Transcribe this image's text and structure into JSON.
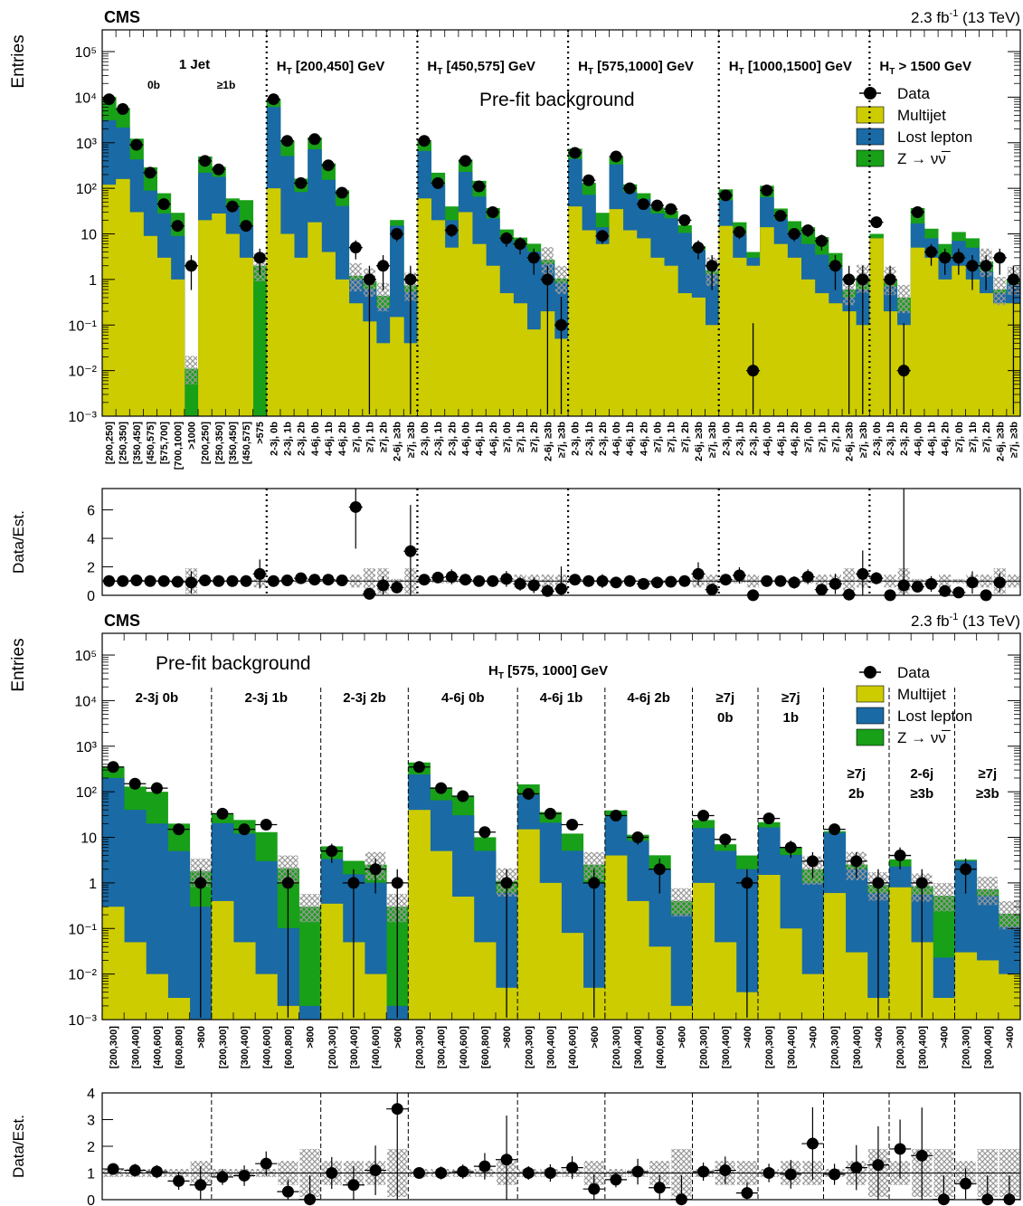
{
  "colors": {
    "multijet": "#cccc00",
    "lost_lepton": "#1a6aa5",
    "znunu": "#18a018",
    "data": "#000000",
    "unc": "#999999"
  },
  "chart_data": [
    {
      "type": "bar",
      "stacked": true,
      "log_y": true,
      "ylim": [
        0.001,
        300000
      ],
      "ylabel": "Entries",
      "experiment": "CMS",
      "lumi": "2.3 fb",
      "lumi_sup": "-1",
      "energy": "(13 TeV)",
      "annotation": "Pre-fit background",
      "legend_position": "top-right",
      "legend": [
        "Data",
        "Multijet",
        "Lost lepton",
        "Z → νν̅"
      ],
      "regions": [
        {
          "label": "1 Jet",
          "sub": [
            "0b",
            "≥1b"
          ]
        },
        {
          "label": "H",
          "sub_t": "T",
          "range": " [200,450] GeV"
        },
        {
          "label": "H",
          "sub_t": "T",
          "range": " [450,575] GeV"
        },
        {
          "label": "H",
          "sub_t": "T",
          "range": " [575,1000] GeV"
        },
        {
          "label": "H",
          "sub_t": "T",
          "range": " [1000,1500] GeV"
        },
        {
          "label": "H",
          "sub_t": "T",
          "range": " > 1500 GeV"
        }
      ],
      "categories": [
        "[200,250]",
        "[250,350]",
        "[350,450]",
        "[450,575]",
        "[575,700]",
        "[700,1000]",
        ">1000",
        "[200,250]",
        "[250,350]",
        "[350,450]",
        "[450,575]",
        ">575",
        "2-3j, 0b",
        "2-3j, 1b",
        "2-3j, 2b",
        "4-6j, 0b",
        "4-6j, 1b",
        "4-6j, 2b",
        "≥7j, 0b",
        "≥7j, 1b",
        "≥7j, 2b",
        "2-6j, ≥3b",
        "≥7j, ≥3b",
        "2-3j, 0b",
        "2-3j, 1b",
        "2-3j, 2b",
        "4-6j, 0b",
        "4-6j, 1b",
        "4-6j, 2b",
        "≥7j, 0b",
        "≥7j, 1b",
        "≥7j, 2b",
        "2-6j, ≥3b",
        "≥7j, ≥3b",
        "2-3j, 0b",
        "2-3j, 1b",
        "2-3j, 2b",
        "4-6j, 0b",
        "4-6j, 1b",
        "4-6j, 2b",
        "≥7j, 0b",
        "≥7j, 1b",
        "≥7j, 2b",
        "2-6j, ≥3b",
        "≥7j, ≥3b",
        "2-3j, 0b",
        "2-3j, 1b",
        "2-3j, 2b",
        "4-6j, 0b",
        "4-6j, 1b",
        "4-6j, 2b",
        "≥7j, 0b",
        "≥7j, 1b",
        "≥7j, 2b",
        "2-6j, ≥3b",
        "≥7j, ≥3b",
        "2-3j, 0b",
        "2-3j, 1b",
        "2-3j, 2b",
        "4-6j, 0b",
        "4-6j, 1b",
        "4-6j, 2b",
        "≥7j, 0b",
        "≥7j, 1b",
        "≥7j, 2b",
        "2-6j, ≥3b",
        "≥7j, ≥3b"
      ],
      "region_boundaries_after_index": [
        11,
        22,
        33,
        44,
        55
      ],
      "series": [
        {
          "name": "Multijet",
          "values": [
            120,
            160,
            30,
            9,
            3,
            1,
            0,
            20,
            28,
            10,
            3,
            0,
            100,
            10,
            3,
            18,
            4,
            1,
            0.3,
            0.12,
            0.04,
            0.15,
            0.04,
            60,
            20,
            5,
            30,
            6,
            2,
            0.5,
            0.3,
            0.08,
            0.2,
            0.05,
            40,
            12,
            6,
            35,
            12,
            8,
            3,
            2,
            0.5,
            0.4,
            0.1,
            15,
            3,
            2,
            14,
            6,
            3,
            1,
            0.5,
            0.3,
            0.2,
            0.1,
            8,
            0.2,
            0.1,
            5,
            3,
            1,
            2,
            1,
            0.5,
            0.3,
            0.3
          ]
        },
        {
          "name": "Lost lepton",
          "values": [
            3000,
            2000,
            400,
            80,
            25,
            8,
            0.001,
            200,
            150,
            30,
            12,
            0.001,
            6000,
            500,
            80,
            700,
            150,
            40,
            0.7,
            0.5,
            0.2,
            15,
            0.5,
            600,
            100,
            15,
            200,
            60,
            20,
            7,
            5,
            4,
            2,
            0.8,
            400,
            60,
            8,
            300,
            70,
            50,
            25,
            20,
            10,
            4,
            1.2,
            40,
            7,
            1,
            50,
            15,
            8,
            5,
            3,
            1.5,
            0.2,
            0.5,
            0.001,
            0.5,
            0.1,
            12,
            5,
            2,
            5,
            4,
            1,
            0.2,
            0.5
          ]
        },
        {
          "name": "Z → νν̅",
          "values": [
            7000,
            3600,
            800,
            200,
            50,
            20,
            0.01,
            280,
            120,
            20,
            40,
            2,
            3000,
            600,
            80,
            600,
            200,
            50,
            0.2,
            0.3,
            0.2,
            5,
            0.2,
            400,
            100,
            20,
            200,
            80,
            15,
            5,
            3,
            2,
            0.5,
            0.2,
            300,
            60,
            15,
            150,
            40,
            20,
            10,
            10,
            5,
            1,
            0.3,
            40,
            8,
            1,
            50,
            15,
            8,
            8,
            5,
            2,
            0.2,
            0.5,
            2,
            0.3,
            0.2,
            20,
            5,
            3,
            4,
            3,
            1,
            0.1,
            0.2
          ]
        }
      ],
      "data": [
        9000,
        5500,
        900,
        220,
        45,
        15,
        2,
        400,
        260,
        40,
        15,
        3,
        9000,
        1100,
        130,
        1200,
        320,
        80,
        5,
        1,
        2,
        10,
        1,
        1100,
        130,
        12,
        400,
        110,
        30,
        8,
        6,
        3,
        1,
        0.1,
        600,
        150,
        9,
        500,
        100,
        45,
        42,
        35,
        20,
        5,
        2,
        70,
        11,
        0.01,
        90,
        25,
        10,
        12,
        7,
        2,
        1,
        1,
        18,
        1,
        0.01,
        30,
        4,
        3,
        3,
        2,
        2,
        3,
        1
      ],
      "ratio": {
        "ylabel": "Data/Est.",
        "ylim": [
          0,
          7.5
        ],
        "yticks": [
          0,
          2,
          4,
          6
        ],
        "values": [
          1.0,
          1.0,
          1.05,
          1.0,
          1.0,
          0.95,
          0.9,
          1.05,
          1.0,
          1.0,
          1.0,
          1.5,
          1.0,
          1.05,
          1.2,
          1.1,
          1.1,
          1.05,
          6.2,
          0.1,
          0.7,
          0.55,
          3.1,
          1.1,
          1.25,
          1.3,
          1.1,
          1.0,
          1.0,
          1.15,
          0.8,
          0.7,
          0.3,
          0.45,
          1.1,
          1.0,
          1.0,
          0.9,
          1.0,
          0.8,
          0.9,
          0.95,
          1.0,
          1.5,
          0.4,
          1.1,
          1.4,
          0.01,
          1.0,
          1.0,
          0.9,
          1.3,
          0.4,
          0.8,
          0.05,
          1.5,
          1.2,
          0.01,
          0.7,
          0.6,
          0.8,
          0.3,
          0.2,
          0.9,
          0.01,
          0.9
        ]
      }
    },
    {
      "type": "bar",
      "stacked": true,
      "log_y": true,
      "ylim": [
        0.001,
        300000
      ],
      "ylabel": "Entries",
      "experiment": "CMS",
      "lumi": "2.3 fb",
      "lumi_sup": "-1",
      "energy": "(13 TeV)",
      "annotation": "Pre-fit background",
      "title": "H",
      "title_sub": "T",
      "title_rest": " [575, 1000] GeV",
      "legend_position": "top-right",
      "legend": [
        "Data",
        "Multijet",
        "Lost lepton",
        "Z → νν̅"
      ],
      "groups": [
        {
          "label": "2-3j 0b",
          "categories": [
            "[200,300]",
            "[300,400]",
            "[400,600]",
            "[600,800]",
            ">800"
          ]
        },
        {
          "label": "2-3j 1b",
          "categories": [
            "[200,300]",
            "[300,400]",
            "[400,600]",
            "[600,800]",
            ">800"
          ]
        },
        {
          "label": "2-3j 2b",
          "categories": [
            "[200,300]",
            "[300,400]",
            "[400,600]",
            ">600"
          ]
        },
        {
          "label": "4-6j 0b",
          "categories": [
            "[200,300]",
            "[300,400]",
            "[400,600]",
            "[600,800]",
            ">800"
          ]
        },
        {
          "label": "4-6j 1b",
          "categories": [
            "[200,300]",
            "[300,400]",
            "[400,600]",
            ">600"
          ]
        },
        {
          "label": "4-6j 2b",
          "categories": [
            "[200,300]",
            "[300,400]",
            "[400,600]",
            ">600"
          ]
        },
        {
          "label": "≥7j",
          "label2": "0b",
          "categories": [
            "[200,300]",
            "[300,400]",
            ">400"
          ]
        },
        {
          "label": "≥7j",
          "label2": "1b",
          "categories": [
            "[200,300]",
            "[300,400]",
            ">400"
          ]
        },
        {
          "label": "≥7j",
          "label2": "2b",
          "categories": [
            "[200,300]",
            "[300,400]",
            ">400"
          ]
        },
        {
          "label": "2-6j",
          "label2": "≥3b",
          "categories": [
            "[200,300]",
            "[300,400]",
            ">400"
          ]
        },
        {
          "label": "≥7j",
          "label2": "≥3b",
          "categories": [
            "[200,300]",
            "[300,400]",
            ">400"
          ]
        }
      ],
      "series": [
        {
          "name": "Multijet",
          "values": [
            0.3,
            0.05,
            0.01,
            0.003,
            0.001,
            0.4,
            0.05,
            0.01,
            0.002,
            0.001,
            0.35,
            0.05,
            0.01,
            0.001,
            40,
            5,
            0.5,
            0.05,
            0.005,
            15,
            1,
            0.08,
            0.005,
            4,
            0.4,
            0.04,
            0.002,
            1,
            0.05,
            0.004,
            1.5,
            0.1,
            0.01,
            0.6,
            0.03,
            0.003,
            0.8,
            0.05,
            0.003,
            0.03,
            0.02,
            0.01
          ]
        },
        {
          "name": "Lost lepton",
          "values": [
            200,
            40,
            20,
            5,
            0.3,
            20,
            12,
            3,
            0.1,
            0.001,
            3,
            1.5,
            1,
            0.001,
            200,
            60,
            30,
            5,
            0.6,
            70,
            20,
            5,
            1,
            25,
            8,
            2,
            0.2,
            15,
            5,
            2,
            15,
            4,
            1,
            12,
            2,
            0.6,
            1.5,
            0.5,
            0.02,
            3,
            0.5,
            0.1
          ]
        },
        {
          "name": "Z → νν̅",
          "values": [
            150,
            90,
            80,
            15,
            1.5,
            12,
            12,
            10,
            2,
            0.3,
            3,
            1.5,
            1.5,
            0.3,
            200,
            60,
            50,
            5,
            0.5,
            60,
            15,
            7,
            1.5,
            10,
            3,
            2,
            0.2,
            8,
            2,
            2,
            5,
            2,
            1,
            1,
            0.5,
            0.3,
            1,
            0.3,
            0.5,
            0.2,
            0.2,
            0.1
          ]
        }
      ],
      "data": [
        350,
        150,
        120,
        15,
        1,
        33,
        15,
        19,
        1,
        0.001,
        5,
        1,
        2,
        1,
        350,
        120,
        80,
        13,
        1,
        90,
        33,
        19,
        1,
        30,
        10,
        2,
        0.001,
        30,
        9,
        1,
        26,
        6,
        3,
        15,
        3,
        1,
        4,
        1,
        0.001,
        2,
        0.001,
        0.001
      ],
      "ratio": {
        "ylabel": "Data/Est.",
        "ylim": [
          0,
          4
        ],
        "yticks": [
          0,
          1,
          2,
          3,
          4
        ],
        "values": [
          1.15,
          1.1,
          1.05,
          0.7,
          0.55,
          0.85,
          0.9,
          1.35,
          0.3,
          0.01,
          1.0,
          0.55,
          1.1,
          3.4,
          1.0,
          1.0,
          1.05,
          1.25,
          1.5,
          1.0,
          1.0,
          1.2,
          0.4,
          0.75,
          1.05,
          0.45,
          0.01,
          1.05,
          1.1,
          0.25,
          1.0,
          0.95,
          2.1,
          0.95,
          1.2,
          1.3,
          1.9,
          1.65,
          0.01,
          0.6,
          0.01,
          0.01
        ]
      }
    }
  ]
}
